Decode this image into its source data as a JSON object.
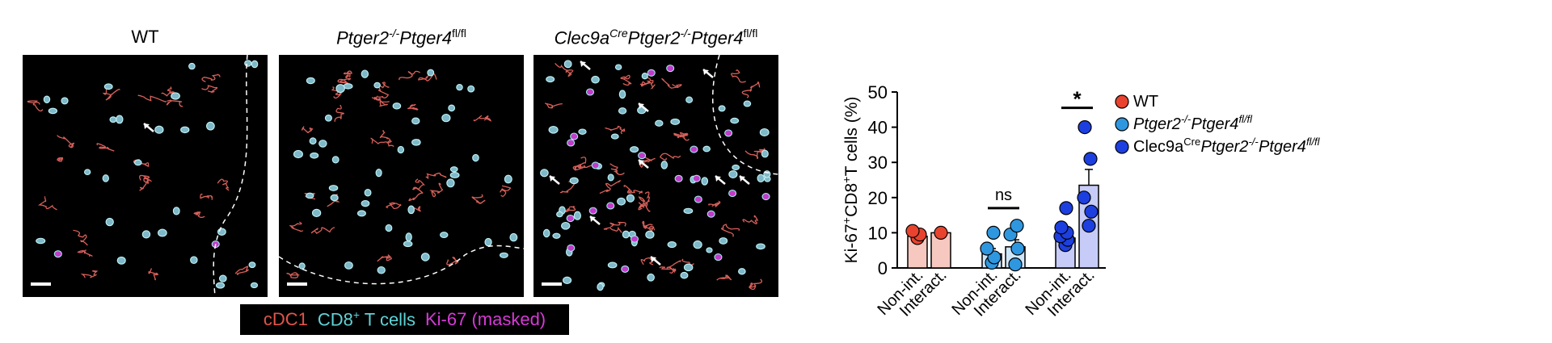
{
  "panels": [
    {
      "title_plain": "WT"
    },
    {
      "title_gene": "Ptger2",
      "title_gene_sup": "-/-",
      "title_gene2": "Ptger4",
      "title_gene2_sup": "fl/fl"
    },
    {
      "title_pre": "Clec9a",
      "title_pre_sup": "Cre",
      "title_gene": "Ptger2",
      "title_gene_sup": "-/-",
      "title_gene2": "Ptger4",
      "title_gene2_sup": "fl/fl"
    }
  ],
  "stain_legend": {
    "cdc1": "cDC1",
    "cd8_a": "CD8",
    "cd8_sup": "+",
    "cd8_b": " T cells",
    "ki67": "Ki-67 (masked)",
    "colors": {
      "cdc1": "#e0544a",
      "cd8": "#5fd3d6",
      "ki67": "#d63ad6"
    }
  },
  "chart_data": {
    "type": "bar",
    "ylabel_a": "Ki-67",
    "ylabel_sup": "+",
    "ylabel_b": " CD8",
    "ylabel_sup2": "+",
    "ylabel_c": " T cells (%)",
    "ylim": [
      0,
      50
    ],
    "yticks": [
      "0",
      "10",
      "20",
      "30",
      "40",
      "50"
    ],
    "categories": [
      "Non-int.",
      "Interact.",
      "Non-int.",
      "Interact.",
      "Non-int.",
      "Interact."
    ],
    "bars": [
      {
        "group": "WT",
        "label": "Non-int.",
        "mean": 9,
        "sem": 1,
        "points": [
          8.5,
          9.5,
          10.5
        ]
      },
      {
        "group": "WT",
        "label": "Interact.",
        "mean": 10,
        "sem": 0.5,
        "points": [
          10
        ]
      },
      {
        "group": "Ptger2-/-Ptger4fl/fl",
        "label": "Non-int.",
        "mean": 4,
        "sem": 1.5,
        "points": [
          1.5,
          3,
          5.5,
          10
        ]
      },
      {
        "group": "Ptger2-/-Ptger4fl/fl",
        "label": "Interact.",
        "mean": 6,
        "sem": 2,
        "points": [
          1,
          5.5,
          9.5,
          12
        ]
      },
      {
        "group": "Clec9aCrePtger2-/-Ptger4fl/fl",
        "label": "Non-int.",
        "mean": 8.5,
        "sem": 1.5,
        "points": [
          6.5,
          8,
          9,
          10,
          11.5,
          17
        ]
      },
      {
        "group": "Clec9aCrePtger2-/-Ptger4fl/fl",
        "label": "Interact.",
        "mean": 23.5,
        "sem": 4.5,
        "points": [
          12,
          16,
          20,
          31,
          40
        ]
      }
    ],
    "significance": [
      {
        "pair": [
          2,
          3
        ],
        "label": "ns"
      },
      {
        "pair": [
          4,
          5
        ],
        "label": "*"
      }
    ],
    "legend": [
      {
        "text_a": "WT",
        "text_it": "",
        "text_it_sup": "",
        "color": "#e8432e"
      },
      {
        "text_a": "",
        "text_it": "Ptger2",
        "text_it_sup": "-/-",
        "text_it2": "Ptger4",
        "text_it2_sup": "fl/fl",
        "color": "#2f97e0"
      },
      {
        "text_a": "Clec9a",
        "text_a_sup": "Cre",
        "text_it": "Ptger2",
        "text_it_sup": "-/-",
        "text_it2": "Ptger4",
        "text_it2_sup": "fl/fl",
        "color": "#1d3fe0"
      }
    ],
    "colors": {
      "dot": [
        "#e8432e",
        "#e8432e",
        "#2f97e0",
        "#2f97e0",
        "#1d3fe0",
        "#1d3fe0"
      ],
      "bar_fill": [
        "#f6c8c0",
        "#f6c8c0",
        "#cfe6f8",
        "#cfe6f8",
        "#c6ccf7",
        "#c6ccf7"
      ]
    }
  }
}
